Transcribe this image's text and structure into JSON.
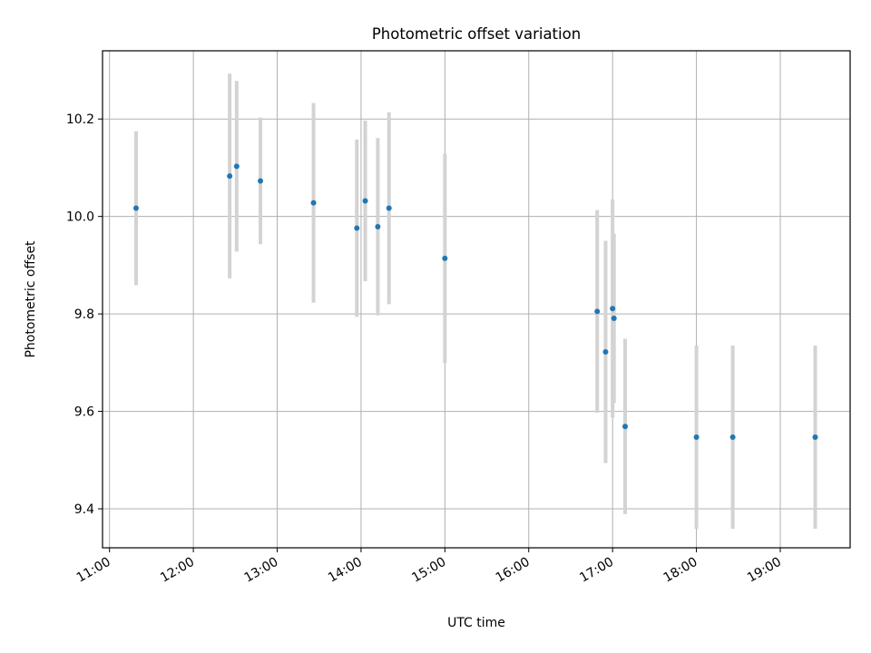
{
  "chart_data": {
    "type": "scatter",
    "title": "Photometric offset variation",
    "xlabel": "UTC time",
    "ylabel": "Photometric offset",
    "x_tick_labels": [
      "11:00",
      "12:00",
      "13:00",
      "14:00",
      "15:00",
      "16:00",
      "17:00",
      "18:00",
      "19:00"
    ],
    "y_tick_labels": [
      "9.4",
      "9.6",
      "9.8",
      "10.0",
      "10.2"
    ],
    "y_ticks": [
      9.4,
      9.6,
      9.8,
      10.0,
      10.2
    ],
    "xlim": [
      "10:55",
      "19:50"
    ],
    "ylim": [
      9.32,
      10.34
    ],
    "grid": true,
    "series": [
      {
        "marker_color": "#1f77b4",
        "errorbar_color": "#d3d3d3",
        "points": [
          {
            "x": "11:19",
            "y": 10.017,
            "yerr": 0.158
          },
          {
            "x": "12:26",
            "y": 10.083,
            "yerr": 0.21
          },
          {
            "x": "12:31",
            "y": 10.103,
            "yerr": 0.175
          },
          {
            "x": "12:48",
            "y": 10.073,
            "yerr": 0.13
          },
          {
            "x": "13:26",
            "y": 10.028,
            "yerr": 0.205
          },
          {
            "x": "13:57",
            "y": 9.976,
            "yerr": 0.182
          },
          {
            "x": "14:03",
            "y": 10.032,
            "yerr": 0.165
          },
          {
            "x": "14:12",
            "y": 9.979,
            "yerr": 0.182
          },
          {
            "x": "14:20",
            "y": 10.017,
            "yerr": 0.197
          },
          {
            "x": "15:00",
            "y": 9.914,
            "yerr": 0.215
          },
          {
            "x": "16:49",
            "y": 9.805,
            "yerr": 0.208
          },
          {
            "x": "16:55",
            "y": 9.722,
            "yerr": 0.228
          },
          {
            "x": "17:00",
            "y": 9.811,
            "yerr": 0.224
          },
          {
            "x": "17:01",
            "y": 9.791,
            "yerr": 0.174
          },
          {
            "x": "17:09",
            "y": 9.569,
            "yerr": 0.18
          },
          {
            "x": "18:00",
            "y": 9.547,
            "yerr": 0.188
          },
          {
            "x": "18:26",
            "y": 9.547,
            "yerr": 0.188
          },
          {
            "x": "19:25",
            "y": 9.547,
            "yerr": 0.188
          }
        ]
      }
    ]
  }
}
